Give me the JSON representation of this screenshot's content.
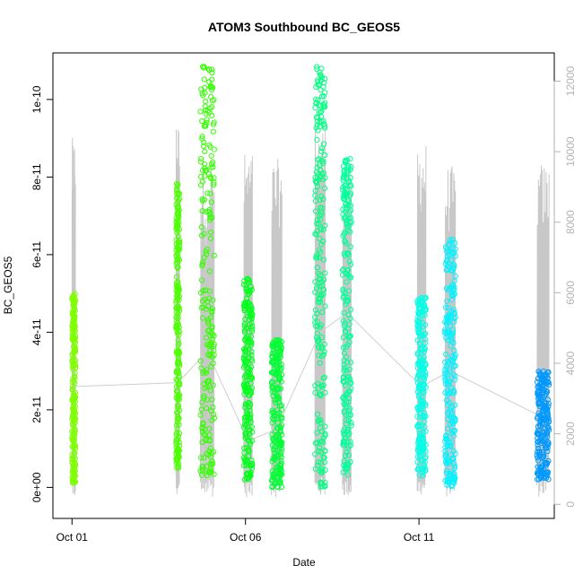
{
  "chart_data": {
    "type": "scatter",
    "title": "ATOM3 Southbound BC_GEOS5",
    "xlabel": "Date",
    "ylabel": "BC_GEOS5",
    "x_ticks": [
      "Oct 01",
      "Oct 06",
      "Oct 11"
    ],
    "y_ticks": [
      "0e+00",
      "2e-11",
      "4e-11",
      "6e-11",
      "8e-11",
      "1e-10"
    ],
    "y_tick_values": [
      0,
      2e-11,
      4e-11,
      6e-11,
      8e-11,
      1e-10
    ],
    "y2_ticks": [
      "0",
      "2000",
      "4000",
      "6000",
      "8000",
      "10000",
      "12000"
    ],
    "y2_tick_values": [
      0,
      2000,
      4000,
      6000,
      8000,
      10000,
      12000
    ],
    "x_range_days": [
      -0.55,
      13.9
    ],
    "ylim": [
      -8e-12,
      1.12e-10
    ],
    "y2lim": [
      -400,
      12800
    ],
    "series": [
      {
        "color": "#7fff00",
        "x_range": [
          0.0,
          0.1
        ],
        "y_min": 1e-12,
        "y_max": 5e-11,
        "y_mid": 2.6e-11,
        "alt_max": 10400
      },
      {
        "color": "#4dff00",
        "x_range": [
          3.0,
          3.1
        ],
        "y_min": 5e-12,
        "y_max": 7.9e-11,
        "y_mid": 2.7e-11,
        "alt_max": 10900
      },
      {
        "color": "#33ff00",
        "x_range": [
          3.7,
          4.1
        ],
        "y_min": 3e-12,
        "y_max": 1.09e-10,
        "y_mid": 3.5e-11,
        "alt_max": 9800
      },
      {
        "color": "#00ff1a",
        "x_range": [
          4.95,
          5.2
        ],
        "y_min": 2e-12,
        "y_max": 5.4e-11,
        "y_mid": 1.2e-11,
        "alt_max": 10000
      },
      {
        "color": "#00ff33",
        "x_range": [
          5.75,
          6.05
        ],
        "y_min": 0.0,
        "y_max": 3.8e-11,
        "y_mid": 1.5e-11,
        "alt_max": 9800
      },
      {
        "color": "#00ff80",
        "x_range": [
          7.0,
          7.3
        ],
        "y_min": 0.0,
        "y_max": 1.09e-10,
        "y_mid": 4e-11,
        "alt_max": 10900
      },
      {
        "color": "#00ff99",
        "x_range": [
          7.8,
          8.05
        ],
        "y_min": 3e-12,
        "y_max": 8.5e-11,
        "y_mid": 4.5e-11,
        "alt_max": 9600
      },
      {
        "color": "#00ffe6",
        "x_range": [
          9.95,
          10.2
        ],
        "y_min": 3e-12,
        "y_max": 4.9e-11,
        "y_mid": 2.6e-11,
        "alt_max": 10300
      },
      {
        "color": "#00f2ff",
        "x_range": [
          10.75,
          11.05
        ],
        "y_min": 0.0,
        "y_max": 6.4e-11,
        "y_mid": 3e-11,
        "alt_max": 9600
      },
      {
        "color": "#0099ff",
        "x_range": [
          13.4,
          13.75
        ],
        "y_min": 2e-12,
        "y_max": 3e-11,
        "y_mid": 1.8e-11,
        "alt_max": 9700
      }
    ],
    "right_axis_color": "#b3b3b3",
    "grid": false,
    "legend": "none"
  }
}
